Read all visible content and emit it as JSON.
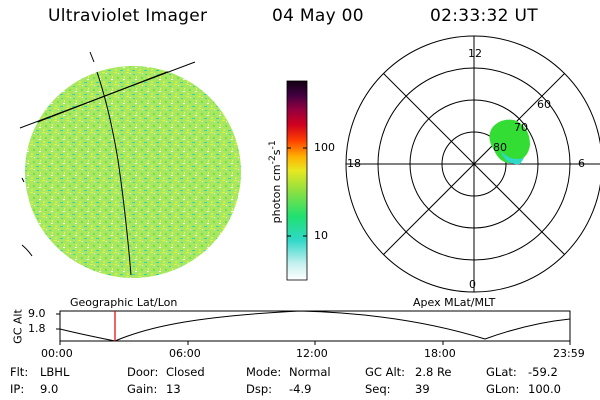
{
  "header": {
    "instrument": "Ultraviolet Imager",
    "date": "04 May 00",
    "time": "02:33:32 UT"
  },
  "left_panel": {
    "caption": "Geographic Lat/Lon"
  },
  "colorbar": {
    "label_html": "photon cm<sup>-2</sup>s<sup>-1</sup>",
    "ticks": [
      "100",
      "10"
    ]
  },
  "right_panel": {
    "caption": "Apex MLat/MLT",
    "mlt_labels": {
      "top": "12",
      "left": "18",
      "right": "6",
      "bottom": "0"
    },
    "lat_labels": [
      "60",
      "70",
      "80"
    ]
  },
  "altitude_plot": {
    "ylabel": "GC Alt",
    "yticks": [
      "9.0",
      "1.8"
    ],
    "xticks": [
      "00:00",
      "06:00",
      "12:00",
      "18:00",
      "23:59"
    ]
  },
  "info": {
    "row1": [
      {
        "label": "Flt:",
        "value": "LBHL"
      },
      {
        "label": "Door:",
        "value": "Closed"
      },
      {
        "label": "Mode:",
        "value": "Normal"
      },
      {
        "label": "GC Alt:",
        "value": "2.8 Re"
      },
      {
        "label": "GLat:",
        "value": "-59.2"
      }
    ],
    "row2": [
      {
        "label": "IP:",
        "value": "9.0"
      },
      {
        "label": "Gain:",
        "value": "13"
      },
      {
        "label": "Dsp:",
        "value": "-4.9"
      },
      {
        "label": "Seq:",
        "value": "39"
      },
      {
        "label": "GLon:",
        "value": "100.0"
      }
    ]
  },
  "colors": {
    "marker": "#e00000",
    "aurora": "#33dd33"
  }
}
